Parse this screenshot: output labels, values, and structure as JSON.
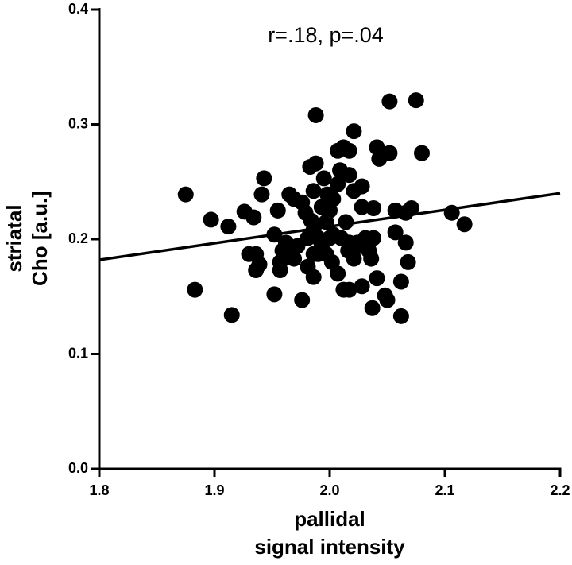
{
  "chart_data": {
    "type": "scatter",
    "annotation": "r=.18, p=.04",
    "xlabel": [
      "pallidal",
      "signal intensity"
    ],
    "ylabel": [
      "striatal",
      "Cho [a.u.]"
    ],
    "color": "#000000",
    "xlim": [
      1.8,
      2.2
    ],
    "ylim": [
      0,
      0.4
    ],
    "xticks": [
      1.8,
      1.9,
      {
        "value": 2,
        "label": "2.0"
      },
      2.1,
      2.2
    ],
    "yticks": [
      {
        "value": 0,
        "label": "0.0"
      },
      0.1,
      0.2,
      0.3,
      0.4
    ],
    "x": [
      1.875,
      1.897,
      1.883,
      1.915,
      1.912,
      1.926,
      1.934,
      1.943,
      1.941,
      1.93,
      1.936,
      1.936,
      1.939,
      1.952,
      1.957,
      1.955,
      1.952,
      1.959,
      1.957,
      1.962,
      1.964,
      1.976,
      1.969,
      1.972,
      1.981,
      1.981,
      1.986,
      1.983,
      1.988,
      1.988,
      1.965,
      1.969,
      1.976,
      1.979,
      1.984,
      1.986,
      1.99,
      1.993,
      1.997,
      1.993,
      1.998,
      1.986,
      1.99,
      2.0,
      1.997,
      2.002,
      1.986,
      2.0,
      2.003,
      2.007,
      2.009,
      2.007,
      2.012,
      2.017,
      2.021,
      2.017,
      2.021,
      2.028,
      2.028,
      2.024,
      2.017,
      2.014,
      2.01,
      2.016,
      2.021,
      2.028,
      2.031,
      2.034,
      2.038,
      2.036,
      2.038,
      2.028,
      2.017,
      2.012,
      2.037,
      2.041,
      2.048,
      2.05,
      2.041,
      2.043,
      2.052,
      2.052,
      2.075,
      2.08,
      2.057,
      2.057,
      2.066,
      2.071,
      2.066,
      2.068,
      2.062,
      2.062,
      2.106,
      2.117,
      2.007,
      2.003,
      1.995
    ],
    "y": [
      0.239,
      0.217,
      0.156,
      0.134,
      0.211,
      0.224,
      0.219,
      0.253,
      0.239,
      0.187,
      0.187,
      0.173,
      0.178,
      0.152,
      0.173,
      0.225,
      0.204,
      0.19,
      0.18,
      0.197,
      0.187,
      0.147,
      0.183,
      0.194,
      0.176,
      0.201,
      0.187,
      0.263,
      0.266,
      0.308,
      0.239,
      0.235,
      0.232,
      0.223,
      0.216,
      0.208,
      0.201,
      0.194,
      0.215,
      0.228,
      0.239,
      0.242,
      0.187,
      0.201,
      0.187,
      0.18,
      0.167,
      0.225,
      0.204,
      0.248,
      0.26,
      0.277,
      0.28,
      0.256,
      0.294,
      0.277,
      0.242,
      0.246,
      0.228,
      0.197,
      0.197,
      0.215,
      0.201,
      0.19,
      0.183,
      0.194,
      0.201,
      0.19,
      0.201,
      0.183,
      0.227,
      0.159,
      0.156,
      0.156,
      0.14,
      0.166,
      0.151,
      0.147,
      0.28,
      0.27,
      0.275,
      0.32,
      0.321,
      0.275,
      0.225,
      0.206,
      0.223,
      0.227,
      0.197,
      0.18,
      0.163,
      0.133,
      0.223,
      0.213,
      0.17,
      0.235,
      0.253
    ],
    "fit": {
      "x": [
        1.8,
        2.2
      ],
      "y": [
        0.182,
        0.24
      ]
    }
  }
}
